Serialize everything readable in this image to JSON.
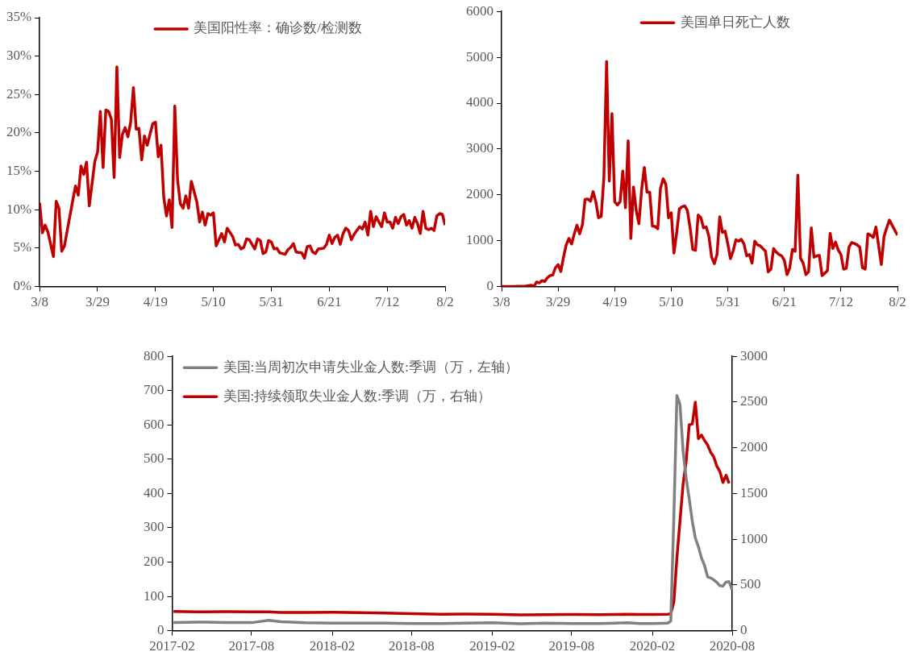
{
  "chart_data": [
    {
      "type": "line",
      "legend": "top",
      "grid": false,
      "xlim": [
        "--03-08",
        "--08-02"
      ],
      "xticks": [
        {
          "value": "--03-08",
          "label": "3/8"
        },
        {
          "value": "--03-29",
          "label": "3/29"
        },
        {
          "value": "--04-19",
          "label": "4/19"
        },
        {
          "value": "--05-10",
          "label": "5/10"
        },
        {
          "value": "--05-31",
          "label": "5/31"
        },
        {
          "value": "--06-21",
          "label": "6/21"
        },
        {
          "value": "--07-12",
          "label": "7/12"
        },
        {
          "value": "--08-02",
          "label": "8/2"
        }
      ],
      "ylim": [
        0,
        35
      ],
      "yticks": [
        {
          "value": 0,
          "label": "0%"
        },
        {
          "value": 5,
          "label": "5%"
        },
        {
          "value": 10,
          "label": "10%"
        },
        {
          "value": 15,
          "label": "15%"
        },
        {
          "value": 20,
          "label": "20%"
        },
        {
          "value": 25,
          "label": "25%"
        },
        {
          "value": 30,
          "label": "30%"
        },
        {
          "value": 35,
          "label": "35%"
        }
      ],
      "series": [
        {
          "name": "美国阳性率：确诊数/检测数",
          "color": "#c00000",
          "x": [
            "--03-08",
            "--03-09",
            "--03-10",
            "--03-11",
            "--03-13",
            "--03-14",
            "--03-15",
            "--03-16",
            "--03-17",
            "--03-18",
            "--03-20",
            "--03-21",
            "--03-22",
            "--03-23",
            "--03-24",
            "--03-25",
            "--03-26",
            "--03-28",
            "--03-29",
            "--03-30",
            "--03-31",
            "--04-01",
            "--04-02",
            "--04-03",
            "--04-04",
            "--04-05",
            "--04-06",
            "--04-07",
            "--04-08",
            "--04-09",
            "--04-10",
            "--04-11",
            "--04-12",
            "--04-13",
            "--04-14",
            "--04-15",
            "--04-16",
            "--04-18",
            "--04-19",
            "--04-20",
            "--04-21",
            "--04-22",
            "--04-23",
            "--04-24",
            "--04-25",
            "--04-26",
            "--04-27",
            "--04-28",
            "--04-29",
            "--04-30",
            "--05-01",
            "--05-02",
            "--05-04",
            "--05-05",
            "--05-06",
            "--05-07",
            "--05-08",
            "--05-09",
            "--05-10",
            "--05-11",
            "--05-13",
            "--05-14",
            "--05-15",
            "--05-17",
            "--05-18",
            "--05-19",
            "--05-20",
            "--05-21",
            "--05-22",
            "--05-23",
            "--05-25",
            "--05-26",
            "--05-27",
            "--05-28",
            "--05-29",
            "--05-30",
            "--05-31",
            "--06-01",
            "--06-02",
            "--06-03",
            "--06-05",
            "--06-06",
            "--06-07",
            "--06-08",
            "--06-09",
            "--06-11",
            "--06-12",
            "--06-13",
            "--06-14",
            "--06-15",
            "--06-16",
            "--06-17",
            "--06-19",
            "--06-20",
            "--06-21",
            "--06-22",
            "--06-23",
            "--06-24",
            "--06-25",
            "--06-26",
            "--06-27",
            "--06-28",
            "--06-29",
            "--06-30",
            "--07-01",
            "--07-02",
            "--07-03",
            "--07-04",
            "--07-05",
            "--07-06",
            "--07-07",
            "--07-08",
            "--07-09",
            "--07-10",
            "--07-11",
            "--07-12",
            "--07-13",
            "--07-14",
            "--07-15",
            "--07-16",
            "--07-17",
            "--07-18",
            "--07-19",
            "--07-20",
            "--07-21",
            "--07-22",
            "--07-23",
            "--07-24",
            "--07-25",
            "--07-26",
            "--07-27",
            "--07-28",
            "--07-29",
            "--07-30",
            "--07-31",
            "--08-01",
            "--08-02"
          ],
          "values": [
            10.9,
            7.0,
            8.0,
            7.1,
            3.9,
            11.1,
            10.2,
            4.6,
            5.3,
            7.3,
            11.2,
            13.1,
            11.9,
            15.7,
            14.6,
            16.2,
            10.5,
            16.3,
            17.5,
            22.8,
            15.5,
            23.0,
            22.8,
            21.8,
            14.2,
            28.6,
            16.8,
            19.8,
            20.7,
            19.5,
            21.4,
            25.9,
            20.5,
            20.6,
            16.5,
            19.6,
            18.4,
            21.2,
            21.4,
            16.9,
            18.4,
            11.6,
            9.2,
            11.3,
            7.7,
            23.5,
            13.9,
            10.8,
            10.2,
            11.8,
            10.2,
            13.7,
            11.0,
            8.4,
            9.7,
            8.0,
            9.5,
            9.3,
            9.6,
            5.3,
            6.9,
            5.8,
            7.6,
            6.5,
            5.4,
            5.5,
            4.9,
            5.1,
            6.2,
            6.1,
            4.9,
            6.2,
            6.0,
            4.3,
            4.5,
            6.0,
            5.8,
            4.9,
            5.0,
            4.4,
            4.2,
            4.8,
            5.1,
            5.6,
            4.5,
            4.4,
            3.7,
            5.2,
            5.3,
            4.5,
            4.3,
            4.9,
            5.0,
            5.5,
            6.7,
            5.6,
            6.4,
            6.7,
            5.5,
            6.9,
            7.6,
            7.3,
            6.1,
            6.8,
            7.3,
            7.8,
            7.5,
            8.4,
            6.7,
            9.8,
            7.8,
            9.1,
            8.4,
            7.8,
            9.6,
            8.4,
            8.4,
            7.6,
            9.0,
            8.2,
            9.1,
            9.4,
            8.0,
            8.6,
            7.6,
            9.0,
            8.2,
            6.9,
            9.8,
            7.6,
            7.4,
            7.6,
            7.3,
            9.2,
            9.5,
            9.4,
            8.0
          ]
        }
      ]
    },
    {
      "type": "line",
      "legend": "top",
      "grid": false,
      "xlim": [
        "--03-08",
        "--08-02"
      ],
      "xticks": [
        {
          "value": "--03-08",
          "label": "3/8"
        },
        {
          "value": "--03-29",
          "label": "3/29"
        },
        {
          "value": "--04-19",
          "label": "4/19"
        },
        {
          "value": "--05-10",
          "label": "5/10"
        },
        {
          "value": "--05-31",
          "label": "5/31"
        },
        {
          "value": "--06-21",
          "label": "6/21"
        },
        {
          "value": "--07-12",
          "label": "7/12"
        },
        {
          "value": "--08-02",
          "label": "8/2"
        }
      ],
      "ylim": [
        0,
        6000
      ],
      "yticks": [
        0,
        1000,
        2000,
        3000,
        4000,
        5000,
        6000
      ],
      "series": [
        {
          "name": "美国单日死亡人数",
          "color": "#c00000",
          "x": [
            "--03-08",
            "--03-12",
            "--03-17",
            "--03-19",
            "--03-20",
            "--03-21",
            "--03-22",
            "--03-23",
            "--03-24",
            "--03-25",
            "--03-26",
            "--03-27",
            "--03-28",
            "--03-29",
            "--03-30",
            "--03-31",
            "--04-01",
            "--04-02",
            "--04-03",
            "--04-04",
            "--04-05",
            "--04-06",
            "--04-07",
            "--04-08",
            "--04-09",
            "--04-10",
            "--04-11",
            "--04-12",
            "--04-13",
            "--04-14",
            "--04-15",
            "--04-16",
            "--04-17",
            "--04-18",
            "--04-19",
            "--04-20",
            "--04-21",
            "--04-22",
            "--04-23",
            "--04-24",
            "--04-25",
            "--04-26",
            "--04-27",
            "--04-28",
            "--04-29",
            "--04-30",
            "--05-01",
            "--05-02",
            "--05-03",
            "--05-04",
            "--05-05",
            "--05-06",
            "--05-07",
            "--05-08",
            "--05-09",
            "--05-10",
            "--05-11",
            "--05-12",
            "--05-13",
            "--05-14",
            "--05-15",
            "--05-16",
            "--05-17",
            "--05-18",
            "--05-19",
            "--05-20",
            "--05-21",
            "--05-22",
            "--05-23",
            "--05-24",
            "--05-25",
            "--05-26",
            "--05-27",
            "--05-28",
            "--05-29",
            "--05-30",
            "--05-31",
            "--06-01",
            "--06-02",
            "--06-03",
            "--06-04",
            "--06-05",
            "--06-06",
            "--06-07",
            "--06-08",
            "--06-09",
            "--06-10",
            "--06-11",
            "--06-12",
            "--06-13",
            "--06-14",
            "--06-15",
            "--06-16",
            "--06-17",
            "--06-18",
            "--06-19",
            "--06-20",
            "--06-21",
            "--06-22",
            "--06-23",
            "--06-24",
            "--06-25",
            "--06-26",
            "--06-27",
            "--06-28",
            "--06-29",
            "--06-30",
            "--07-01",
            "--07-02",
            "--07-03",
            "--07-04",
            "--07-05",
            "--07-06",
            "--07-07",
            "--07-08",
            "--07-09",
            "--07-10",
            "--07-11",
            "--07-12",
            "--07-13",
            "--07-14",
            "--07-15",
            "--07-16",
            "--07-17",
            "--07-18",
            "--07-19",
            "--07-20",
            "--07-21",
            "--07-22",
            "--07-23",
            "--07-24",
            "--07-25",
            "--07-26",
            "--07-27",
            "--07-28",
            "--07-29",
            "--07-30",
            "--07-31",
            "--08-02"
          ],
          "values": [
            0,
            0,
            10,
            30,
            0,
            100,
            80,
            130,
            110,
            190,
            240,
            250,
            410,
            480,
            330,
            640,
            910,
            1050,
            930,
            1150,
            1340,
            1150,
            1340,
            1900,
            1910,
            1860,
            2070,
            1850,
            1500,
            1530,
            2390,
            4910,
            2300,
            3770,
            1850,
            1780,
            1850,
            2520,
            1720,
            3180,
            1050,
            2170,
            1660,
            1370,
            2110,
            2600,
            2060,
            2060,
            1320,
            1310,
            1260,
            2140,
            2350,
            2230,
            1500,
            1610,
            730,
            1160,
            1690,
            1740,
            1760,
            1660,
            1280,
            810,
            790,
            1560,
            1500,
            1280,
            1300,
            1090,
            640,
            500,
            700,
            1520,
            1180,
            1210,
            930,
            610,
            780,
            1020,
            990,
            1030,
            930,
            670,
            700,
            510,
            990,
            910,
            890,
            830,
            770,
            320,
            380,
            830,
            750,
            700,
            670,
            570,
            260,
            410,
            810,
            770,
            2430,
            620,
            510,
            260,
            320,
            1280,
            640,
            670,
            680,
            240,
            290,
            350,
            1160,
            830,
            970,
            800,
            700,
            380,
            400,
            860,
            960,
            940,
            910,
            860,
            410,
            380,
            1150,
            1120,
            1070,
            1300,
            890,
            480,
            1090,
            1280,
            1450,
            1340,
            1120
          ]
        }
      ]
    },
    {
      "type": "line",
      "legend": "top left",
      "grid": false,
      "xlim": [
        "2017-02",
        "2020-08"
      ],
      "xticks": [
        "2017-02",
        "2017-08",
        "2018-02",
        "2018-08",
        "2019-02",
        "2019-08",
        "2020-02",
        "2020-08"
      ],
      "ylim": [
        0,
        800
      ],
      "yticks": [
        0,
        100,
        200,
        300,
        400,
        500,
        600,
        700,
        800
      ],
      "y2lim": [
        0,
        3000
      ],
      "y2ticks": [
        0,
        500,
        1000,
        1500,
        2000,
        2500,
        3000
      ],
      "x": [
        "2017-02-04",
        "2017-04-01",
        "2017-06-03",
        "2017-08-05",
        "2017-09-09",
        "2017-10-07",
        "2017-12-02",
        "2018-02-03",
        "2018-04-07",
        "2018-06-02",
        "2018-08-04",
        "2018-10-06",
        "2018-12-01",
        "2019-02-02",
        "2019-04-06",
        "2019-06-01",
        "2019-08-03",
        "2019-10-05",
        "2019-12-07",
        "2020-01-04",
        "2020-02-01",
        "2020-03-07",
        "2020-03-14",
        "2020-03-21",
        "2020-03-28",
        "2020-04-04",
        "2020-04-11",
        "2020-04-18",
        "2020-04-25",
        "2020-05-02",
        "2020-05-09",
        "2020-05-16",
        "2020-05-23",
        "2020-05-30",
        "2020-06-06",
        "2020-06-13",
        "2020-06-20",
        "2020-06-27",
        "2020-07-04",
        "2020-07-11",
        "2020-07-18",
        "2020-07-25",
        "2020-08-01"
      ],
      "series": [
        {
          "name": "美国:当周初次申请失业金人数:季调（万，左轴）",
          "color": "#808080",
          "values": [
            24,
            25,
            24,
            24,
            30,
            26,
            23,
            22,
            22,
            22,
            21,
            21,
            22,
            23,
            20,
            22,
            21,
            21,
            23,
            21,
            21,
            22,
            28,
            331,
            686,
            660,
            525,
            445,
            385,
            320,
            270,
            245,
            212,
            190,
            157,
            154,
            148,
            141,
            131,
            130,
            142,
            143,
            119
          ]
        },
        {
          "name": "美国:持续领取失业金人数:季调（万，右轴）",
          "color": "#c00000",
          "axis": "y2",
          "values": [
            210,
            205,
            207,
            206,
            205,
            200,
            200,
            202,
            198,
            192,
            186,
            180,
            182,
            180,
            172,
            175,
            178,
            175,
            180,
            178,
            178,
            180,
            185,
            313,
            800,
            1200,
            1600,
            1850,
            2250,
            2260,
            2500,
            2100,
            2140,
            2080,
            2030,
            1950,
            1900,
            1800,
            1740,
            1620,
            1700,
            1610,
            null
          ]
        }
      ]
    }
  ]
}
